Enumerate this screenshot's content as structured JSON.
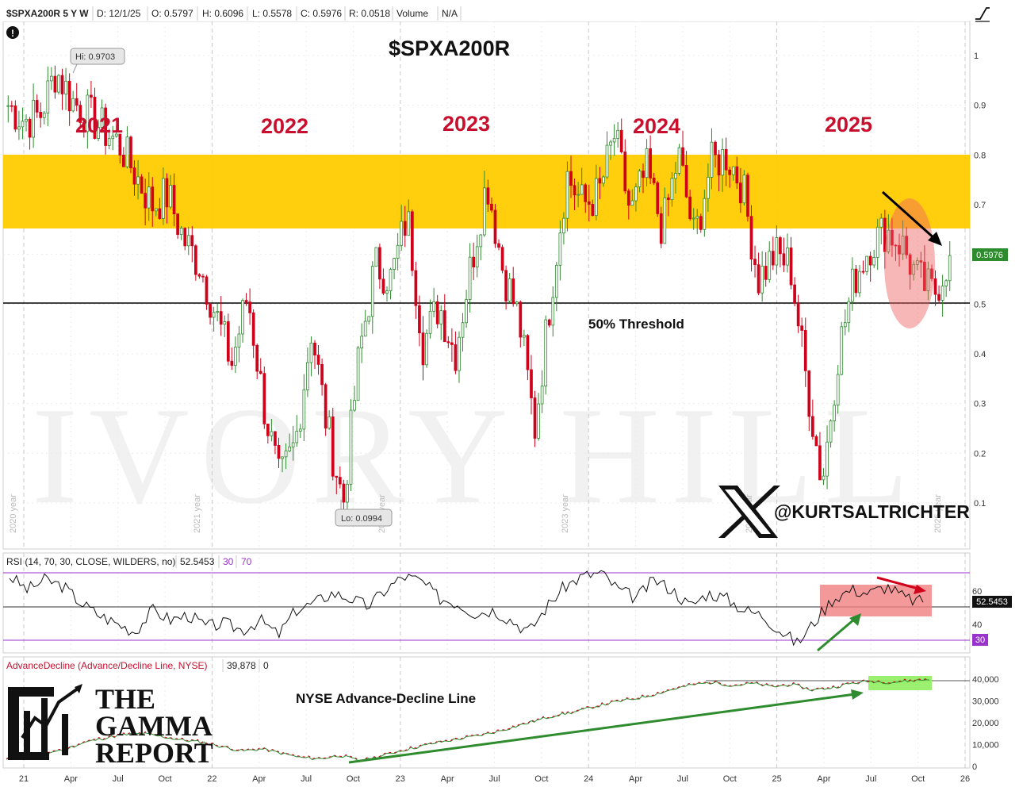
{
  "toolbar": {
    "symbol": "$SPXA200R 5 Y W",
    "date": "D: 12/1/25",
    "open": "O: 0.5797",
    "high": "H: 0.6096",
    "low": "L: 0.5578",
    "close": "C: 0.5976",
    "range": "R: 0.0518",
    "volume_label": "Volume",
    "volume_value": "N/A"
  },
  "main": {
    "title": "$SPXA200R",
    "year_labels": [
      "2021",
      "2022",
      "2023",
      "2024",
      "2025"
    ],
    "vertical_year_marks": [
      "2020 year",
      "2021 year",
      "2022 year",
      "2023 year",
      "2024 year",
      "2025 year"
    ],
    "threshold_label": "50% Threshold",
    "hi_callout": "Hi: 0.9703",
    "lo_callout": "Lo: 0.0994",
    "last_price_badge": "0.5976",
    "social_handle": "@KURTSALTRICHTER",
    "watermark": "IVORY HILL",
    "alert_icon": "exclamation-icon",
    "drawing_tool_icon": "trendline-tool-icon"
  },
  "rsi": {
    "header": "RSI (14, 70, 30, CLOSE, WILDERS, no)",
    "value": "52.5453",
    "lower": "30",
    "upper": "70",
    "tick_60": "60",
    "tick_40": "40",
    "badge_value": "52.5453",
    "badge_lower": "30"
  },
  "adl": {
    "header": "AdvanceDecline (Advance/Decline Line, NYSE)",
    "value": "39,878",
    "extra": "0",
    "title": "NYSE Advance-Decline Line",
    "logo_lines": [
      "THE",
      "GAMMA",
      "REPORT"
    ]
  },
  "xaxis_labels": [
    "21",
    "Apr",
    "Jul",
    "Oct",
    "22",
    "Apr",
    "Jul",
    "Oct",
    "23",
    "Apr",
    "Jul",
    "Oct",
    "24",
    "Apr",
    "Jul",
    "Oct",
    "25",
    "Apr",
    "Jul",
    "Oct",
    "26"
  ],
  "colors": {
    "up": "#2e8b2e",
    "down": "#d0021b",
    "band": "#ffcc00",
    "year_text": "#c8102e",
    "rsi_band": "#f08080",
    "adl_band": "#90ee60",
    "adl_line_a": "#2e8b2e",
    "adl_line_b": "#d0021b",
    "price_badge": "#2e8b2e",
    "lower_badge": "#9933cc"
  },
  "chart_data": [
    {
      "type": "candlestick",
      "title": "$SPXA200R",
      "y_ticks": [
        "1",
        "0.9",
        "0.8",
        "0.7",
        "0.6",
        "0.5",
        "0.4",
        "0.3",
        "0.2",
        "0.1"
      ],
      "ylim": [
        0.05,
        1.05
      ],
      "grid": true,
      "annotations": {
        "band": [
          0.655,
          0.8
        ],
        "threshold": 0.5,
        "high": 0.9703,
        "low": 0.0994,
        "last": 0.5976
      },
      "key_points": [
        {
          "x": "2021-01",
          "y": 0.9
        },
        {
          "x": "2021-02",
          "y": 0.87
        },
        {
          "x": "2021-03",
          "y": 0.88
        },
        {
          "x": "2021-04",
          "y": 0.97
        },
        {
          "x": "2021-05",
          "y": 0.91
        },
        {
          "x": "2021-06",
          "y": 0.88
        },
        {
          "x": "2021-07",
          "y": 0.85
        },
        {
          "x": "2021-08",
          "y": 0.82
        },
        {
          "x": "2021-09",
          "y": 0.76
        },
        {
          "x": "2021-10",
          "y": 0.7
        },
        {
          "x": "2021-11",
          "y": 0.72
        },
        {
          "x": "2021-12",
          "y": 0.63
        },
        {
          "x": "2022-01",
          "y": 0.58
        },
        {
          "x": "2022-02",
          "y": 0.48
        },
        {
          "x": "2022-03",
          "y": 0.38
        },
        {
          "x": "2022-04",
          "y": 0.52
        },
        {
          "x": "2022-05",
          "y": 0.3
        },
        {
          "x": "2022-06",
          "y": 0.14
        },
        {
          "x": "2022-07",
          "y": 0.22
        },
        {
          "x": "2022-08",
          "y": 0.45
        },
        {
          "x": "2022-09",
          "y": 0.25
        },
        {
          "x": "2022-10",
          "y": 0.1
        },
        {
          "x": "2022-11",
          "y": 0.4
        },
        {
          "x": "2022-12",
          "y": 0.58
        },
        {
          "x": "2023-01",
          "y": 0.55
        },
        {
          "x": "2023-02",
          "y": 0.68
        },
        {
          "x": "2023-03",
          "y": 0.42
        },
        {
          "x": "2023-04",
          "y": 0.5
        },
        {
          "x": "2023-05",
          "y": 0.4
        },
        {
          "x": "2023-06",
          "y": 0.58
        },
        {
          "x": "2023-07",
          "y": 0.75
        },
        {
          "x": "2023-08",
          "y": 0.57
        },
        {
          "x": "2023-09",
          "y": 0.47
        },
        {
          "x": "2023-10",
          "y": 0.25
        },
        {
          "x": "2023-11",
          "y": 0.52
        },
        {
          "x": "2023-12",
          "y": 0.76
        },
        {
          "x": "2024-01",
          "y": 0.7
        },
        {
          "x": "2024-02",
          "y": 0.72
        },
        {
          "x": "2024-03",
          "y": 0.84
        },
        {
          "x": "2024-04",
          "y": 0.68
        },
        {
          "x": "2024-05",
          "y": 0.77
        },
        {
          "x": "2024-06",
          "y": 0.65
        },
        {
          "x": "2024-07",
          "y": 0.8
        },
        {
          "x": "2024-08",
          "y": 0.63
        },
        {
          "x": "2024-09",
          "y": 0.78
        },
        {
          "x": "2024-10",
          "y": 0.8
        },
        {
          "x": "2024-11",
          "y": 0.74
        },
        {
          "x": "2024-12",
          "y": 0.55
        },
        {
          "x": "2025-01",
          "y": 0.6
        },
        {
          "x": "2025-02",
          "y": 0.58
        },
        {
          "x": "2025-03",
          "y": 0.35
        },
        {
          "x": "2025-04",
          "y": 0.14
        },
        {
          "x": "2025-05",
          "y": 0.4
        },
        {
          "x": "2025-06",
          "y": 0.55
        },
        {
          "x": "2025-07",
          "y": 0.62
        },
        {
          "x": "2025-08",
          "y": 0.65
        },
        {
          "x": "2025-09",
          "y": 0.62
        },
        {
          "x": "2025-10",
          "y": 0.55
        },
        {
          "x": "2025-11",
          "y": 0.52
        },
        {
          "x": "2025-12",
          "y": 0.5976
        }
      ]
    },
    {
      "type": "line",
      "title": "RSI (14, 70, 30, CLOSE, WILDERS, no)",
      "ylim": [
        25,
        75
      ],
      "reference_lines": [
        70,
        50,
        30
      ],
      "series": [
        {
          "name": "RSI",
          "values": [
            68,
            60,
            66,
            62,
            52,
            45,
            40,
            35,
            48,
            42,
            45,
            38,
            40,
            36,
            42,
            33,
            48,
            52,
            58,
            55,
            50,
            60,
            68,
            65,
            55,
            52,
            46,
            48,
            42,
            35,
            50,
            62,
            68,
            70,
            60,
            55,
            66,
            60,
            50,
            58,
            55,
            48,
            45,
            36,
            28,
            42,
            55,
            60,
            58,
            62,
            55,
            52.5
          ]
        }
      ]
    },
    {
      "type": "line",
      "title": "NYSE Advance-Decline Line",
      "y_ticks": [
        "40,000",
        "30,000",
        "20,000",
        "10,000",
        "0"
      ],
      "ylim": [
        0,
        42000
      ],
      "series": [
        {
          "name": "AdvanceDecline",
          "values": [
            3000,
            4500,
            6000,
            8000,
            11000,
            13000,
            14500,
            15000,
            13500,
            12000,
            11000,
            9000,
            7000,
            8000,
            6000,
            4000,
            3500,
            5000,
            2500,
            4500,
            7000,
            9000,
            11000,
            12500,
            14000,
            16000,
            18500,
            21000,
            23500,
            25000,
            27500,
            29500,
            31000,
            33000,
            35500,
            37500,
            38500,
            37000,
            38000,
            36500,
            37500,
            35000,
            36000,
            38000,
            39000,
            38500,
            39200,
            39878
          ]
        }
      ]
    }
  ]
}
